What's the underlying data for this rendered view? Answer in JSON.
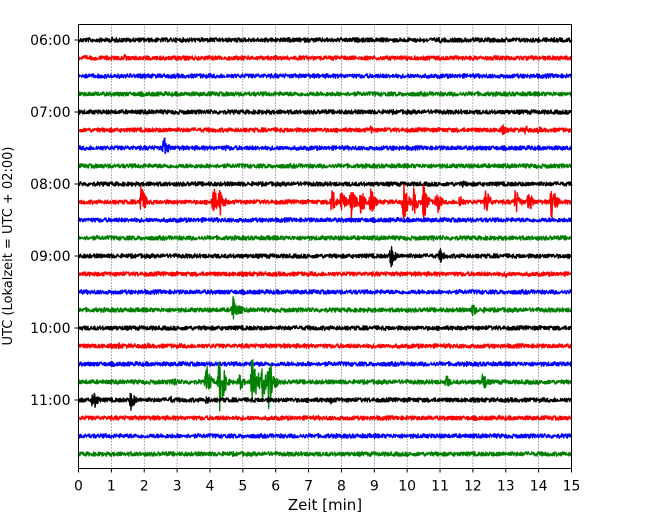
{
  "chart_data": {
    "type": "line",
    "title": "",
    "xlabel": "Zeit  [min]",
    "ylabel": "UTC (Lokalzeit = UTC + 02:00)",
    "xlim": [
      0,
      15
    ],
    "x_ticks": [
      "0",
      "1",
      "2",
      "3",
      "4",
      "5",
      "6",
      "7",
      "8",
      "9",
      "10",
      "11",
      "12",
      "13",
      "14",
      "15"
    ],
    "y_tick_labels": [
      "06:00",
      "07:00",
      "08:00",
      "09:00",
      "10:00",
      "11:00"
    ],
    "trace_interval_min": 15,
    "grid": "vertical-dotted",
    "colors": [
      "#000000",
      "#ff0000",
      "#0000ff",
      "#008000"
    ],
    "traces": [
      {
        "start": "06:00",
        "color": "#000000",
        "events": [
          {
            "t": 1.0,
            "amp": 0.3
          },
          {
            "t": 11.0,
            "amp": 0.3
          }
        ]
      },
      {
        "start": "06:15",
        "color": "#ff0000",
        "events": [
          {
            "t": 1.4,
            "amp": 0.3
          },
          {
            "t": 3.2,
            "amp": 0.25
          }
        ]
      },
      {
        "start": "06:30",
        "color": "#0000ff",
        "events": [
          {
            "t": 3.7,
            "amp": 0.2
          }
        ]
      },
      {
        "start": "06:45",
        "color": "#008000",
        "events": [
          {
            "t": 2.2,
            "amp": 0.2
          }
        ]
      },
      {
        "start": "07:00",
        "color": "#000000",
        "events": [
          {
            "t": 7.5,
            "amp": 0.25
          }
        ]
      },
      {
        "start": "07:15",
        "color": "#ff0000",
        "events": [
          {
            "t": 8.9,
            "amp": 0.35
          },
          {
            "t": 12.9,
            "amp": 0.5
          },
          {
            "t": 13.6,
            "amp": 0.45
          },
          {
            "t": 14.0,
            "amp": 0.35
          }
        ]
      },
      {
        "start": "07:30",
        "color": "#0000ff",
        "events": [
          {
            "t": 2.6,
            "amp": 1.0
          },
          {
            "t": 4.5,
            "amp": 0.3
          },
          {
            "t": 9.6,
            "amp": 0.3
          }
        ]
      },
      {
        "start": "07:45",
        "color": "#008000",
        "events": [
          {
            "t": 1.6,
            "amp": 0.2
          }
        ]
      },
      {
        "start": "08:00",
        "color": "#000000",
        "events": [
          {
            "t": 11.7,
            "amp": 0.35
          }
        ]
      },
      {
        "start": "08:15",
        "color": "#ff0000",
        "events": [
          {
            "t": 1.9,
            "amp": 1.6
          },
          {
            "t": 4.1,
            "amp": 1.4
          },
          {
            "t": 4.3,
            "amp": 1.3
          },
          {
            "t": 7.7,
            "amp": 1.3
          },
          {
            "t": 8.0,
            "amp": 1.2
          },
          {
            "t": 8.3,
            "amp": 1.6
          },
          {
            "t": 8.6,
            "amp": 1.3
          },
          {
            "t": 8.9,
            "amp": 1.2
          },
          {
            "t": 9.9,
            "amp": 1.6
          },
          {
            "t": 10.2,
            "amp": 1.2
          },
          {
            "t": 10.5,
            "amp": 1.6
          },
          {
            "t": 10.9,
            "amp": 1.2
          },
          {
            "t": 11.6,
            "amp": 0.7
          },
          {
            "t": 12.4,
            "amp": 1.3
          },
          {
            "t": 13.3,
            "amp": 1.2
          },
          {
            "t": 13.7,
            "amp": 1.0
          },
          {
            "t": 14.4,
            "amp": 1.7
          }
        ]
      },
      {
        "start": "08:30",
        "color": "#0000ff",
        "events": [
          {
            "t": 3.0,
            "amp": 0.2
          }
        ]
      },
      {
        "start": "08:45",
        "color": "#008000",
        "events": [
          {
            "t": 5.8,
            "amp": 0.25
          },
          {
            "t": 10.8,
            "amp": 0.25
          }
        ]
      },
      {
        "start": "09:00",
        "color": "#000000",
        "events": [
          {
            "t": 9.5,
            "amp": 1.1
          },
          {
            "t": 11.0,
            "amp": 0.7
          }
        ]
      },
      {
        "start": "09:15",
        "color": "#ff0000",
        "events": [
          {
            "t": 13.0,
            "amp": 0.35
          }
        ]
      },
      {
        "start": "09:30",
        "color": "#0000ff",
        "events": [
          {
            "t": 6.9,
            "amp": 0.2
          }
        ]
      },
      {
        "start": "09:45",
        "color": "#008000",
        "events": [
          {
            "t": 4.7,
            "amp": 1.2
          },
          {
            "t": 4.9,
            "amp": 0.5
          },
          {
            "t": 12.0,
            "amp": 0.6
          },
          {
            "t": 12.3,
            "amp": 0.3
          }
        ]
      },
      {
        "start": "10:00",
        "color": "#000000",
        "events": [
          {
            "t": 2.3,
            "amp": 0.2
          }
        ]
      },
      {
        "start": "10:15",
        "color": "#ff0000",
        "events": [
          {
            "t": 1.2,
            "amp": 0.35
          },
          {
            "t": 2.1,
            "amp": 0.25
          }
        ]
      },
      {
        "start": "10:30",
        "color": "#0000ff",
        "events": [
          {
            "t": 4.2,
            "amp": 0.25
          },
          {
            "t": 5.5,
            "amp": 0.2
          }
        ]
      },
      {
        "start": "10:45",
        "color": "#008000",
        "events": [
          {
            "t": 2.9,
            "amp": 0.5
          },
          {
            "t": 3.9,
            "amp": 1.4
          },
          {
            "t": 4.3,
            "amp": 2.8
          },
          {
            "t": 4.9,
            "amp": 0.8
          },
          {
            "t": 5.3,
            "amp": 3.0
          },
          {
            "t": 5.6,
            "amp": 1.6
          },
          {
            "t": 5.8,
            "amp": 2.6
          },
          {
            "t": 11.2,
            "amp": 0.6
          },
          {
            "t": 12.3,
            "amp": 0.9
          }
        ]
      },
      {
        "start": "11:00",
        "color": "#000000",
        "events": [
          {
            "t": 0.45,
            "amp": 1.0
          },
          {
            "t": 1.6,
            "amp": 0.9
          },
          {
            "t": 2.8,
            "amp": 0.35
          },
          {
            "t": 3.9,
            "amp": 0.4
          },
          {
            "t": 7.7,
            "amp": 0.4
          },
          {
            "t": 10.3,
            "amp": 0.25
          }
        ]
      },
      {
        "start": "11:15",
        "color": "#ff0000",
        "events": [
          {
            "t": 6.4,
            "amp": 0.2
          }
        ]
      },
      {
        "start": "11:30",
        "color": "#0000ff",
        "events": [
          {
            "t": 8.3,
            "amp": 0.2
          }
        ]
      },
      {
        "start": "11:45",
        "color": "#008000",
        "events": [
          {
            "t": 12.8,
            "amp": 0.2
          }
        ]
      }
    ]
  }
}
